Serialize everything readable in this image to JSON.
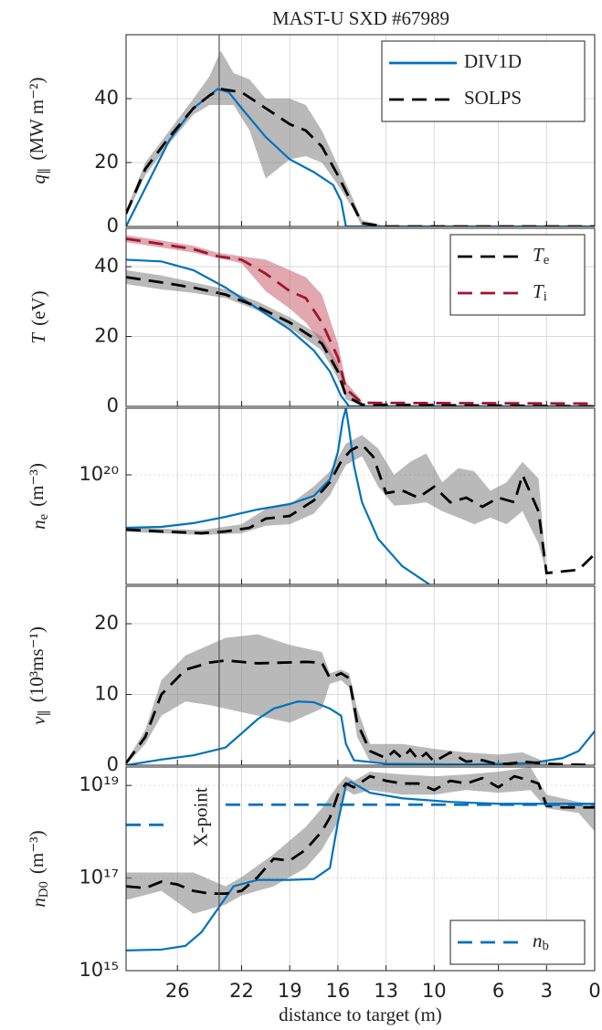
{
  "chart_data": [
    {
      "type": "line",
      "title": "MAST-U SXD  #67989",
      "ylabel": {
        "main": "q",
        "sub": "∥",
        "unit": "(MW m⁻²)"
      },
      "xlim": [
        29.2,
        0
      ],
      "xticks": [
        26,
        22,
        19,
        16,
        13,
        10,
        6,
        3,
        0
      ],
      "ylim": [
        0,
        60
      ],
      "yticks": [
        0,
        20,
        40
      ],
      "grid": true,
      "legend": "upper right",
      "bands": [
        {
          "color": "#808080",
          "x": [
            29.2,
            28,
            26.5,
            25,
            24,
            23.3,
            22.5,
            21.5,
            20.5,
            19,
            18,
            17,
            16,
            15,
            14.5,
            13
          ],
          "lower": [
            3,
            16,
            26,
            35,
            38,
            38,
            38,
            30,
            15,
            21,
            22,
            20,
            13,
            5,
            0,
            0
          ],
          "upper": [
            5,
            20,
            30,
            40,
            47,
            55,
            48,
            46,
            40,
            40,
            38,
            30,
            19,
            8,
            2,
            0
          ]
        }
      ],
      "series": [
        {
          "name": "DIV1D",
          "color": "#0072bd",
          "style": "solid",
          "x": [
            29.2,
            28,
            26.5,
            25,
            23.5,
            22.8,
            22,
            20.5,
            19,
            17.5,
            16.3,
            15.8,
            15.5,
            0
          ],
          "values": [
            0,
            12,
            27,
            37,
            43,
            42,
            37,
            28,
            21,
            17,
            13,
            8,
            0,
            0
          ]
        },
        {
          "name": "SOLPS",
          "color": "#000000",
          "style": "dashed",
          "x": [
            29.2,
            28,
            26.5,
            25,
            24,
            23.3,
            22,
            20.5,
            19,
            18,
            17,
            16,
            15,
            14.5,
            13,
            0
          ],
          "values": [
            4,
            18,
            28,
            37,
            41,
            43,
            42,
            37,
            32,
            30,
            25,
            16,
            6,
            1,
            0,
            0
          ]
        }
      ]
    },
    {
      "type": "line",
      "ylabel": {
        "main": "T",
        "unit": "(eV)"
      },
      "xlim": [
        29.2,
        0
      ],
      "xticks": [
        26,
        22,
        19,
        16,
        13,
        10,
        6,
        3,
        0
      ],
      "ylim": [
        0,
        51
      ],
      "yticks": [
        0,
        20,
        40
      ],
      "grid": true,
      "legend": "upper right",
      "bands": [
        {
          "color": "#808080",
          "x": [
            29.2,
            27,
            25,
            23,
            21,
            19,
            17,
            16,
            15.5,
            14.5
          ],
          "lower": [
            35,
            33.5,
            32.5,
            31,
            27.5,
            22.5,
            16,
            8,
            2,
            0
          ],
          "upper": [
            39,
            37.5,
            35.5,
            33.5,
            30,
            25.5,
            20,
            12,
            4,
            1
          ]
        },
        {
          "color": "#c9606f",
          "x": [
            29.2,
            27,
            25,
            23.5,
            22,
            20.5,
            19,
            18,
            17,
            16,
            15.5,
            14.5
          ],
          "lower": [
            47,
            45.5,
            44,
            42.5,
            41,
            33,
            28,
            24,
            18,
            11,
            4,
            0.5
          ],
          "upper": [
            49,
            47.5,
            46,
            44,
            43,
            42,
            39,
            37,
            32,
            18,
            7,
            1.5
          ]
        }
      ],
      "series": [
        {
          "color": "#0072bd",
          "style": "solid",
          "x": [
            29.2,
            27,
            25,
            23,
            21,
            19,
            17.5,
            16.5,
            15.8,
            15.3,
            0
          ],
          "values": [
            42,
            41.5,
            39,
            34,
            28,
            22,
            16,
            10,
            3,
            0,
            0
          ]
        },
        {
          "name": {
            "main": "T",
            "sub": "e"
          },
          "color": "#000000",
          "style": "dashed",
          "x": [
            29.2,
            27,
            25,
            23,
            21,
            19,
            17,
            16,
            15.5,
            14.5,
            0
          ],
          "values": [
            37,
            35.5,
            34,
            32,
            28.5,
            24,
            18,
            10,
            3,
            0.5,
            0
          ]
        },
        {
          "name": {
            "main": "T",
            "sub": "i"
          },
          "color": "#a2142f",
          "style": "dashed",
          "x": [
            29.2,
            27,
            25,
            23.5,
            22,
            20.5,
            19,
            18,
            17,
            16,
            15.5,
            14.5,
            0
          ],
          "values": [
            48,
            46.5,
            45,
            43,
            42,
            38,
            33,
            31,
            24,
            14,
            5,
            1,
            0.8
          ]
        }
      ]
    },
    {
      "type": "line",
      "ylabel": {
        "main": "n",
        "sub": "e",
        "unit": "(m⁻³)"
      },
      "xlim": [
        29.2,
        0
      ],
      "xticks": [
        26,
        22,
        19,
        16,
        13,
        10,
        6,
        3,
        0
      ],
      "ylim": [
        2.15e+19,
        2.55e+20
      ],
      "log": true,
      "yticks": [
        {
          "value": 1e+20,
          "label": "10²⁰"
        }
      ],
      "grid": true,
      "bands": [
        {
          "color": "#808080",
          "x": [
            29.2,
            27,
            24.5,
            22,
            20.5,
            19,
            17.5,
            16.5,
            15.5,
            14.5,
            13.5,
            12.5,
            11.5,
            10.5,
            9.5,
            8.5,
            7.5,
            6.5,
            5.5,
            4.5,
            3.5,
            3
          ],
          "lower": [
            4.5e+19,
            4.4e+19,
            4.3e+19,
            4.4e+19,
            4.9e+19,
            5e+19,
            5.8e+19,
            7.5e+19,
            1.15e+20,
            1.3e+20,
            8.5e+19,
            6.5e+19,
            6.6e+19,
            6.8e+19,
            6e+19,
            5.5e+19,
            5e+19,
            5.5e+19,
            5e+19,
            6e+19,
            3.8e+19,
            2.5e+19
          ],
          "upper": [
            4.8e+19,
            4.7e+19,
            4.6e+19,
            5e+19,
            6.2e+19,
            6.6e+19,
            8.5e+19,
            1.05e+20,
            1.55e+20,
            1.75e+20,
            1.45e+20,
            1e+20,
            1.2e+20,
            1.35e+20,
            9e+19,
            1.1e+20,
            1.05e+20,
            8e+19,
            9e+19,
            1.2e+20,
            9.5e+19,
            2.6e+19
          ]
        }
      ],
      "series": [
        {
          "color": "#0072bd",
          "style": "solid",
          "x": [
            29.2,
            27,
            25,
            23,
            21,
            19,
            17.5,
            16.5,
            16,
            15.7,
            15.5,
            15.3,
            15,
            14.5,
            13.5,
            12,
            10.3
          ],
          "values": [
            4.76e+19,
            4.82e+19,
            5.08e+19,
            5.55e+19,
            6.15e+19,
            6.64e+19,
            7.45e+19,
            9.38e+19,
            1.38e+20,
            2.15e+20,
            2.55e+20,
            1.9e+20,
            1.14e+20,
            6.81e+19,
            4.08e+19,
            2.78e+19,
            2.15e+19
          ]
        },
        {
          "color": "#000000",
          "style": "dashed",
          "x": [
            29.2,
            27,
            24.5,
            23,
            21.5,
            20.5,
            19,
            17.5,
            16.5,
            15.8,
            15.2,
            14.5,
            13.8,
            13,
            12,
            11,
            10,
            9,
            8,
            7,
            6,
            5,
            4.5,
            4,
            3.5,
            3,
            1,
            0
          ],
          "values": [
            4.64e+19,
            4.52e+19,
            4.41e+19,
            4.52e+19,
            4.76e+19,
            5.41e+19,
            5.62e+19,
            6.99e+19,
            9.03e+19,
            1.21e+20,
            1.41e+20,
            1.53e+20,
            1.29e+20,
            7.74e+19,
            8.04e+19,
            7.26e+19,
            8.47e+19,
            6.81e+19,
            7.26e+19,
            6.39e+19,
            7.26e+19,
            6.81e+19,
            1e+20,
            7.74e+19,
            5.99e+19,
            2.52e+19,
            2.64e+19,
            3.29e+19
          ]
        }
      ]
    },
    {
      "type": "line",
      "ylabel": {
        "main": "v",
        "sub": "∥",
        "unit": "(10³ms⁻¹)"
      },
      "xlim": [
        29.2,
        0
      ],
      "xticks": [
        26,
        22,
        19,
        16,
        13,
        10,
        6,
        3,
        0
      ],
      "ylim": [
        0,
        25.3
      ],
      "yticks": [
        0,
        10,
        20
      ],
      "grid": true,
      "bands": [
        {
          "color": "#808080",
          "x": [
            29.2,
            28,
            27,
            25.5,
            24,
            23,
            21,
            19,
            17,
            16.5,
            15.8,
            15.3,
            14.8,
            14,
            13,
            12,
            10,
            8,
            6,
            4.5,
            3
          ],
          "lower": [
            0,
            3,
            7,
            9,
            8.5,
            8,
            7,
            6,
            8,
            11.5,
            12,
            11,
            4,
            0.5,
            0,
            0,
            0,
            0,
            0,
            0,
            0
          ],
          "upper": [
            0.5,
            5,
            12,
            15.5,
            17,
            18,
            18.5,
            17,
            16,
            13,
            13.5,
            13,
            8,
            3,
            3,
            3,
            2.3,
            1.8,
            1.5,
            1.8,
            0.4
          ]
        }
      ],
      "series": [
        {
          "color": "#0072bd",
          "style": "solid",
          "x": [
            29.2,
            27,
            25,
            23,
            22,
            21,
            20,
            18.5,
            17.5,
            16.5,
            15.8,
            15.5,
            15,
            13,
            8,
            4,
            2,
            1,
            0
          ],
          "values": [
            0,
            0.8,
            1.4,
            2.5,
            4.5,
            6.5,
            8,
            9,
            8.9,
            8,
            7,
            3,
            0.7,
            0.2,
            0.1,
            0.3,
            1,
            2,
            4.8
          ]
        },
        {
          "color": "#000000",
          "style": "dashed",
          "x": [
            29.2,
            28,
            27,
            25.5,
            24,
            23,
            21,
            18,
            17,
            16.5,
            15.8,
            15.3,
            14.8,
            14,
            13,
            12.5,
            12,
            11.5,
            11,
            10.5,
            10,
            9,
            8,
            7,
            6,
            5,
            4.5,
            3,
            0
          ],
          "values": [
            0.3,
            4,
            10,
            13.5,
            14.5,
            14.8,
            14.4,
            14.6,
            14.5,
            12.3,
            13,
            12.3,
            6,
            2,
            1,
            2,
            1,
            2.2,
            0.8,
            1.7,
            0.5,
            1.8,
            0.5,
            0.7,
            0.1,
            0.3,
            0.5,
            0.2,
            0
          ]
        }
      ]
    },
    {
      "type": "line",
      "ylabel": {
        "main": "n",
        "sub": "D0",
        "unit": "(m⁻³)"
      },
      "xlabel": "distance to target (m)",
      "xlim": [
        29.2,
        0
      ],
      "xticks": [
        26,
        22,
        19,
        16,
        13,
        10,
        6,
        3,
        0
      ],
      "ylim": [
        1000000000000000.0,
        2.5e+19
      ],
      "log": true,
      "yticks": [
        {
          "value": 1000000000000000.0,
          "label": "10¹⁵"
        },
        {
          "value": 1e+17,
          "label": "10¹⁷"
        },
        {
          "value": 1e+19,
          "label": "10¹⁹"
        }
      ],
      "grid": true,
      "legend": "lower right",
      "annotation": {
        "text": "X-point",
        "x": 23.4
      },
      "bands": [
        {
          "color": "#808080",
          "x": [
            29.2,
            27,
            25,
            23,
            22,
            20,
            19,
            18,
            17,
            16,
            15.5,
            15,
            14,
            12,
            10,
            8,
            6,
            4,
            3,
            1,
            0
          ],
          "lower": [
            3.35e+16,
            5.28e+16,
            1.69e+16,
            2.67e+16,
            4.21e+16,
            6.64e+16,
            1.05e+17,
            1.65e+17,
            4.11e+17,
            1.61e+18,
            7.96e+18,
            6.34e+18,
            7.96e+18,
            6.34e+18,
            6.34e+18,
            7.96e+18,
            6.95e+18,
            7.96e+18,
            3.2e+18,
            2.55e+18,
            1.02e+18
          ],
          "upper": [
            1.32e+17,
            1.32e+17,
            1.32e+17,
            6.64e+16,
            1.05e+17,
            3.27e+17,
            6.48e+17,
            1.28e+18,
            3.2e+18,
            1e+19,
            1.58e+19,
            1.26e+19,
            1.98e+19,
            1.73e+19,
            1.58e+19,
            1.73e+19,
            1.98e+19,
            2.49e+19,
            6.34e+18,
            4.41e+18,
            4.02e+18
          ]
        }
      ],
      "series": [
        {
          "color": "#0072bd",
          "style": "solid",
          "x": [
            29.2,
            27,
            25.5,
            24.5,
            23.5,
            22.5,
            21,
            19,
            17.5,
            16.5,
            16,
            15.5,
            15.2,
            14,
            12,
            9,
            6,
            0
          ],
          "values": [
            2730000000000000.0,
            2850000000000000.0,
            3430000000000000.0,
            6790000000000000.0,
            2.12e+16,
            6.64e+16,
            9.12e+16,
            9.12e+16,
            9.55e+16,
            1.65e+17,
            1.61e+18,
            1e+19,
            1.2e+19,
            6.95e+18,
            5.28e+18,
            4.41e+18,
            4.02e+18,
            4.02e+18
          ]
        },
        {
          "color": "#000000",
          "style": "dashed",
          "x": [
            29.2,
            28,
            27,
            26,
            25,
            24,
            23,
            22,
            21,
            20,
            19,
            18,
            17,
            16.5,
            16,
            15.5,
            15,
            14,
            13,
            12,
            11,
            10,
            9,
            8,
            7,
            6,
            5,
            4,
            3.5,
            3,
            2,
            1,
            0
          ],
          "values": [
            6.64e+16,
            6.05e+16,
            8.34e+16,
            7.26e+16,
            5.28e+16,
            4.61e+16,
            4.61e+16,
            5.28e+16,
            1.05e+17,
            2.61e+17,
            2.38e+17,
            4.11e+17,
            1.02e+18,
            2.03e+18,
            6.34e+18,
            1.1e+19,
            9.12e+18,
            1.58e+19,
            1.26e+19,
            1.1e+19,
            1.1e+19,
            7.96e+18,
            1.26e+19,
            1.1e+19,
            1.44e+19,
            9.12e+18,
            1.58e+19,
            1.26e+19,
            1.1e+19,
            3.66e+18,
            3.35e+18,
            3.35e+18,
            3.35e+18
          ]
        },
        {
          "name": {
            "main": "n",
            "sub": "b"
          },
          "color": "#0072bd",
          "style": "dashed",
          "x": [
            29.2,
            26.4,
            24.7,
            23,
            0
          ],
          "values": [
            1.41e+18,
            1.41e+18,
            null,
            3.84e+18,
            3.84e+18
          ]
        }
      ]
    }
  ]
}
